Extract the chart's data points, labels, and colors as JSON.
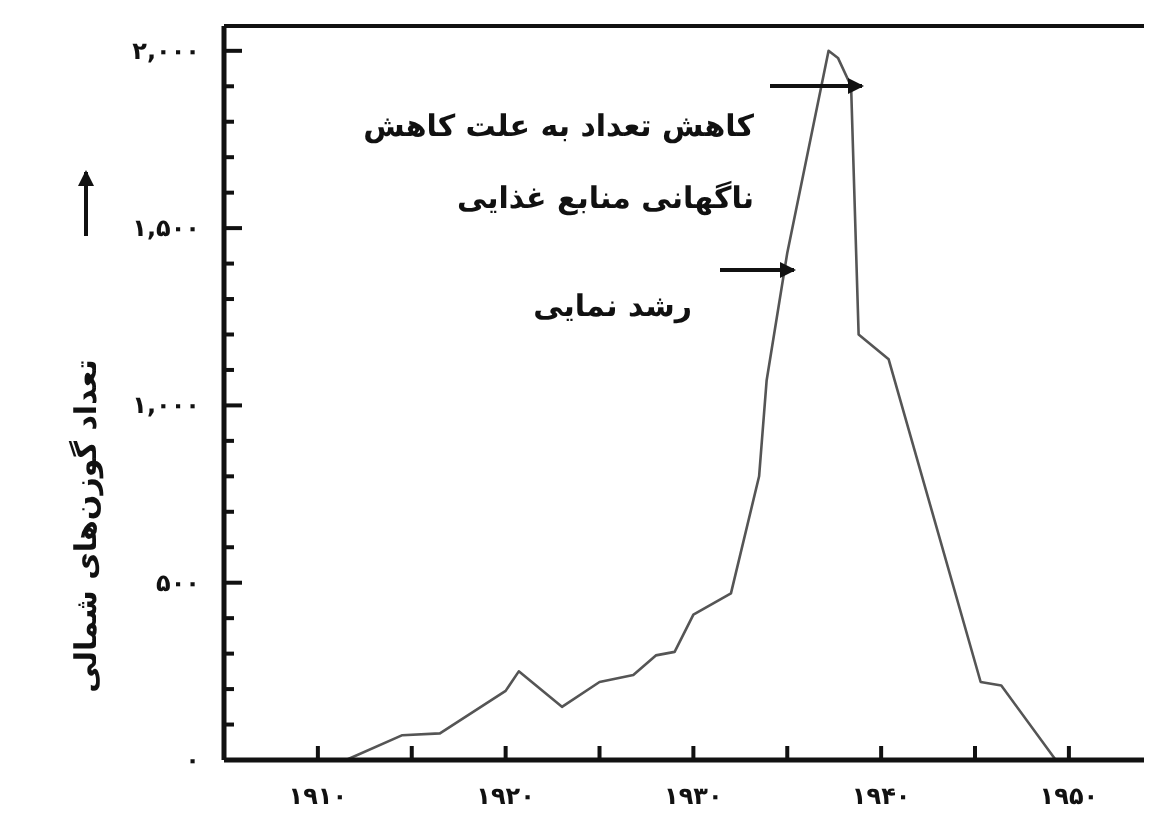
{
  "chart_data": {
    "type": "line",
    "ylabel": "تعداد گوزن‌های شمالی",
    "x": [
      1911.5,
      1914.5,
      1916.5,
      1920,
      1920.7,
      1923,
      1925,
      1926.8,
      1928,
      1929,
      1930,
      1932,
      1933.5,
      1933.9,
      1935,
      1937.2,
      1937.7,
      1938.4,
      1938.8,
      1940.4,
      1945.3,
      1946.4,
      1949.3
    ],
    "values": [
      0,
      70,
      75,
      195,
      250,
      150,
      220,
      240,
      295,
      305,
      410,
      470,
      800,
      1070,
      1430,
      2000,
      1980,
      1900,
      1200,
      1130,
      220,
      210,
      0
    ],
    "color": "#555555",
    "marker": "none",
    "line_style": "solid",
    "xlim": [
      1905,
      1954
    ],
    "ylim": [
      0,
      2070
    ],
    "xticks": [
      {
        "value": 1910,
        "label": "۱۹۱۰"
      },
      {
        "value": 1915,
        "label": null
      },
      {
        "value": 1920,
        "label": "۱۹۲۰"
      },
      {
        "value": 1925,
        "label": null
      },
      {
        "value": 1930,
        "label": "۱۹۳۰"
      },
      {
        "value": 1935,
        "label": null
      },
      {
        "value": 1940,
        "label": "۱۹۴۰"
      },
      {
        "value": 1945,
        "label": null
      },
      {
        "value": 1950,
        "label": "۱۹۵۰"
      }
    ],
    "yticks": [
      {
        "value": 0,
        "label": "۰"
      },
      {
        "value": 100,
        "label": null
      },
      {
        "value": 200,
        "label": null
      },
      {
        "value": 300,
        "label": null
      },
      {
        "value": 400,
        "label": null
      },
      {
        "value": 500,
        "label": "۵۰۰"
      },
      {
        "value": 600,
        "label": null
      },
      {
        "value": 700,
        "label": null
      },
      {
        "value": 800,
        "label": null
      },
      {
        "value": 900,
        "label": null
      },
      {
        "value": 1000,
        "label": "۱,۰۰۰"
      },
      {
        "value": 1100,
        "label": null
      },
      {
        "value": 1200,
        "label": null
      },
      {
        "value": 1300,
        "label": null
      },
      {
        "value": 1400,
        "label": null
      },
      {
        "value": 1500,
        "label": "۱,۵۰۰"
      },
      {
        "value": 1600,
        "label": null
      },
      {
        "value": 1700,
        "label": null
      },
      {
        "value": 1800,
        "label": null
      },
      {
        "value": 1900,
        "label": null
      },
      {
        "value": 2000,
        "label": "۲,۰۰۰"
      }
    ],
    "annotations": [
      "کاهش تعداد به علت کاهش",
      "ناگهانی منابع غذایی",
      "رشد نمایی"
    ]
  }
}
